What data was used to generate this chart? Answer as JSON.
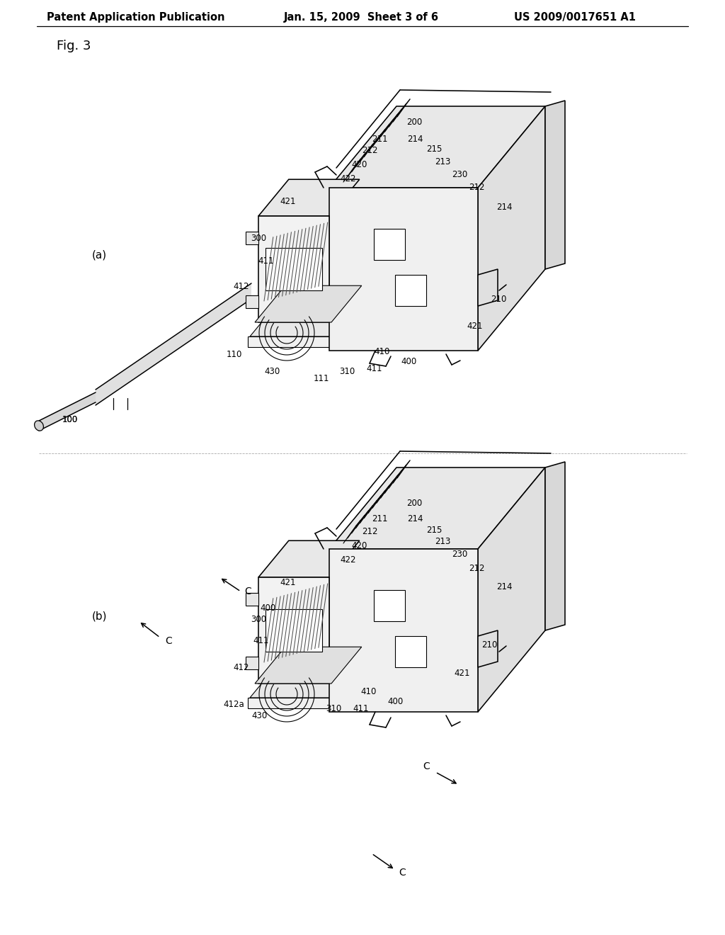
{
  "bg_color": "#ffffff",
  "header_left": "Patent Application Publication",
  "header_center": "Jan. 15, 2009  Sheet 3 of 6",
  "header_right": "US 2009/0017651 A1",
  "fig_label": "Fig. 3",
  "panel_a": "(a)",
  "panel_b": "(b)"
}
